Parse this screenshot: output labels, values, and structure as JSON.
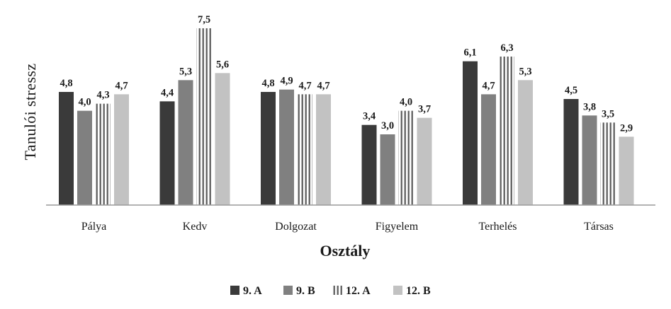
{
  "chart_data": {
    "type": "bar",
    "categories": [
      "Pálya",
      "Kedv",
      "Dolgozat",
      "Figyelem",
      "Terhelés",
      "Társas"
    ],
    "series": [
      {
        "name": "9. A",
        "values": [
          4.8,
          4.4,
          4.8,
          3.4,
          6.1,
          4.5
        ],
        "labels": [
          "4,8",
          "4,4",
          "4,8",
          "3,4",
          "6,1",
          "4,5"
        ],
        "color": "#3a3a3a",
        "pattern": "solid"
      },
      {
        "name": "9. B",
        "values": [
          4.0,
          5.3,
          4.9,
          3.0,
          4.7,
          3.8
        ],
        "labels": [
          "4,0",
          "5,3",
          "4,9",
          "3,0",
          "4,7",
          "3,8"
        ],
        "color": "#808080",
        "pattern": "solid"
      },
      {
        "name": "12. A",
        "values": [
          4.3,
          7.5,
          4.7,
          4.0,
          6.3,
          3.5
        ],
        "labels": [
          "4,3",
          "7,5",
          "4,7",
          "4,0",
          "6,3",
          "3,5"
        ],
        "color": "#5a5a5a",
        "pattern": "vertical-stripes"
      },
      {
        "name": "12. B",
        "values": [
          4.7,
          5.6,
          4.7,
          3.7,
          5.3,
          2.9
        ],
        "labels": [
          "4,7",
          "5,6",
          "4,7",
          "3,7",
          "5,3",
          "2,9"
        ],
        "color": "#c2c2c2",
        "pattern": "solid"
      }
    ],
    "xlabel": "Osztály",
    "ylabel": "Tanulói stressz",
    "ylim": [
      0,
      7.5
    ],
    "grid": false,
    "legend_position": "bottom"
  }
}
